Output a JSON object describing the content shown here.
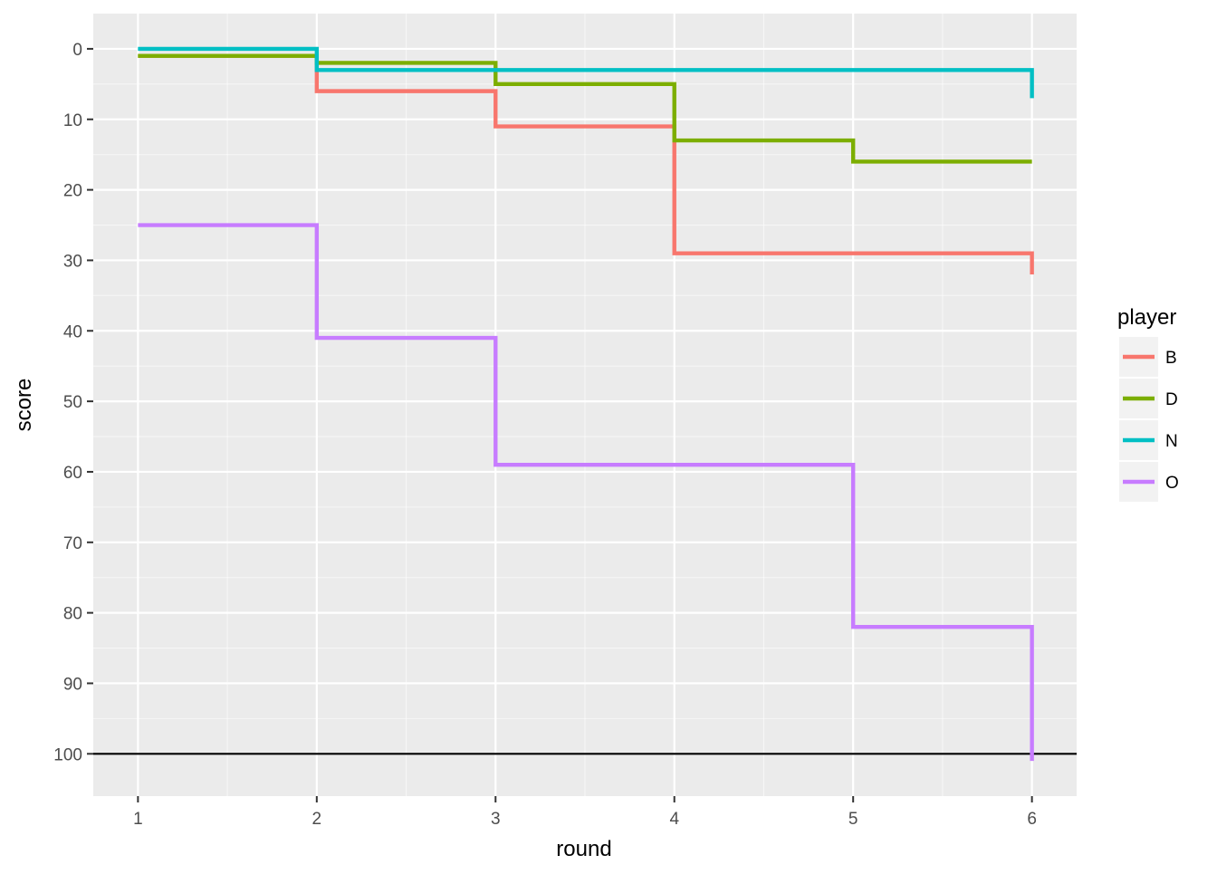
{
  "chart_data": {
    "type": "line",
    "step": "hv",
    "title": "",
    "xlabel": "round",
    "ylabel": "score",
    "x_ticks": [
      1,
      2,
      3,
      4,
      5,
      6
    ],
    "y_ticks": [
      0,
      10,
      20,
      30,
      40,
      50,
      60,
      70,
      80,
      90,
      100
    ],
    "xlim": [
      0.75,
      6.25
    ],
    "ylim": [
      -5,
      106
    ],
    "y_reversed": true,
    "grid": true,
    "reference_line": {
      "y": 100,
      "color": "#000000"
    },
    "legend": {
      "title": "player",
      "position": "right"
    },
    "x": [
      1,
      2,
      3,
      4,
      5,
      6
    ],
    "series": [
      {
        "name": "B",
        "color": "#F8766D",
        "values": [
          1,
          6,
          11,
          29,
          29,
          32
        ]
      },
      {
        "name": "D",
        "color": "#7CAE00",
        "values": [
          1,
          2,
          5,
          13,
          16,
          16
        ]
      },
      {
        "name": "N",
        "color": "#00BFC4",
        "values": [
          0,
          3,
          3,
          3,
          3,
          7
        ]
      },
      {
        "name": "O",
        "color": "#C77CFF",
        "values": [
          25,
          41,
          59,
          59,
          82,
          101
        ]
      }
    ],
    "end_drop_values": {
      "B": [
        29,
        32
      ],
      "N": [
        3,
        7
      ],
      "O": [
        82,
        101
      ]
    }
  },
  "colors": {
    "panel_background": "#EBEBEB",
    "grid_major": "#FFFFFF",
    "tick_text": "#4D4D4D",
    "legend_key_background": "#F2F2F2"
  }
}
